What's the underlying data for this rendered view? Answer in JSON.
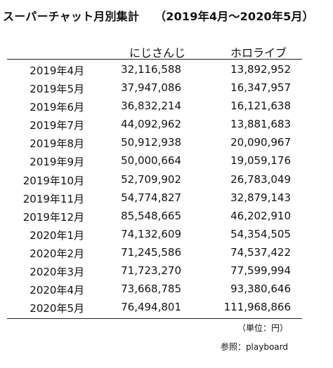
{
  "title": {
    "main": "スーパーチャット月別集計",
    "period": "（2019年4月～2020年5月）"
  },
  "table": {
    "columns": [
      "",
      "にじさんじ",
      "ホロライブ"
    ],
    "rows": [
      {
        "month": "2019年4月",
        "nijisanji": "32,116,588",
        "hololive": "13,892,952"
      },
      {
        "month": "2019年5月",
        "nijisanji": "37,947,086",
        "hololive": "16,347,957"
      },
      {
        "month": "2019年6月",
        "nijisanji": "36,832,214",
        "hololive": "16,121,638"
      },
      {
        "month": "2019年7月",
        "nijisanji": "44,092,962",
        "hololive": "13,881,683"
      },
      {
        "month": "2019年8月",
        "nijisanji": "50,912,938",
        "hololive": "20,090,967"
      },
      {
        "month": "2019年9月",
        "nijisanji": "50,000,664",
        "hololive": "19,059,176"
      },
      {
        "month": "2019年10月",
        "nijisanji": "52,709,902",
        "hololive": "26,783,049"
      },
      {
        "month": "2019年11月",
        "nijisanji": "54,774,827",
        "hololive": "32,879,143"
      },
      {
        "month": "2019年12月",
        "nijisanji": "85,548,665",
        "hololive": "46,202,910"
      },
      {
        "month": "2020年1月",
        "nijisanji": "74,132,609",
        "hololive": "54,354,505"
      },
      {
        "month": "2020年2月",
        "nijisanji": "71,245,586",
        "hololive": "74,537,422"
      },
      {
        "month": "2020年3月",
        "nijisanji": "71,723,270",
        "hololive": "77,599,994"
      },
      {
        "month": "2020年4月",
        "nijisanji": "73,668,785",
        "hololive": "93,380,646"
      },
      {
        "month": "2020年5月",
        "nijisanji": "76,494,801",
        "hololive": "111,968,866"
      }
    ]
  },
  "footer": {
    "unit": "（単位：円）",
    "source": "参照：playboard"
  }
}
